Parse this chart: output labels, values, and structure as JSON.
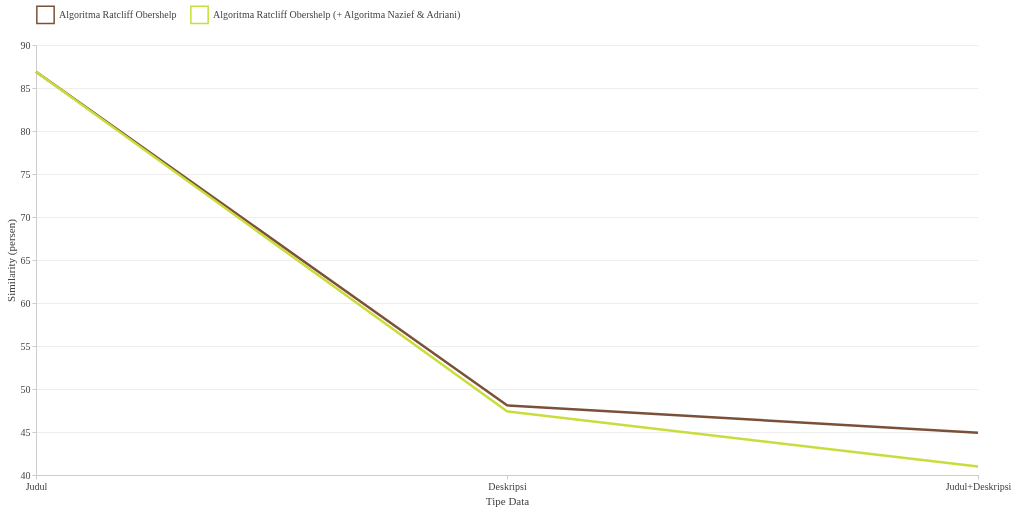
{
  "chart_data": {
    "type": "line",
    "xlabel": "Tipe Data",
    "ylabel": "Similarity (persen)",
    "categories": [
      "Judul",
      "Deskripsi",
      "Judul+Deskripsi"
    ],
    "series": [
      {
        "name": "Algoritma Ratcliff Obershelp",
        "color": "#7b5038",
        "values": [
          86.9,
          48.1,
          44.9
        ]
      },
      {
        "name": "Algoritma Ratcliff Obershelp (+ Algoritma Nazief & Adriani)",
        "color": "#c9dd3a",
        "values": [
          86.9,
          47.4,
          41.0
        ]
      }
    ],
    "ylim": [
      40,
      90
    ],
    "yticks": [
      40,
      45,
      50,
      55,
      60,
      65,
      70,
      75,
      80,
      85,
      90
    ],
    "grid": "y",
    "legend": "top",
    "marker": "none",
    "line_style": "solid"
  }
}
